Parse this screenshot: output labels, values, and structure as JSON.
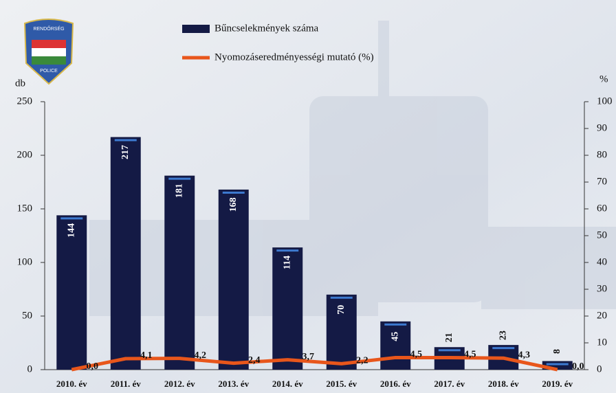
{
  "logo": {
    "top": "RENDŐRSÉG",
    "bottom": "POLICE"
  },
  "chart_data": {
    "type": "bar-line",
    "categories": [
      "2010. év",
      "2011. év",
      "2012. év",
      "2013. év",
      "2014. év",
      "2015. év",
      "2016. év",
      "2017. év",
      "2018. év",
      "2019. év"
    ],
    "series": [
      {
        "name": "Bűncselekmények száma",
        "type": "bar",
        "color": "#141a45",
        "values": [
          144,
          217,
          181,
          168,
          114,
          70,
          45,
          21,
          23,
          8
        ]
      },
      {
        "name": "Nyomozáseredményességi mutató (%)",
        "type": "line",
        "axis": "y2",
        "color": "#e8561b",
        "values": [
          0.0,
          4.1,
          4.2,
          2.4,
          3.7,
          2.2,
          4.5,
          4.5,
          4.3,
          0.0
        ],
        "value_labels": [
          "0,0",
          "4,1",
          "4,2",
          "2,4",
          "3,7",
          "2,2",
          "4,5",
          "4,5",
          "4,3",
          "0,0"
        ]
      }
    ],
    "ylabel": "db",
    "y2label": "%",
    "ylim": [
      0,
      250
    ],
    "yticks": [
      0,
      50,
      100,
      150,
      200,
      250
    ],
    "y2lim": [
      0,
      100
    ],
    "y2ticks": [
      0,
      10,
      20,
      30,
      40,
      50,
      60,
      70,
      80,
      90,
      100
    ]
  }
}
